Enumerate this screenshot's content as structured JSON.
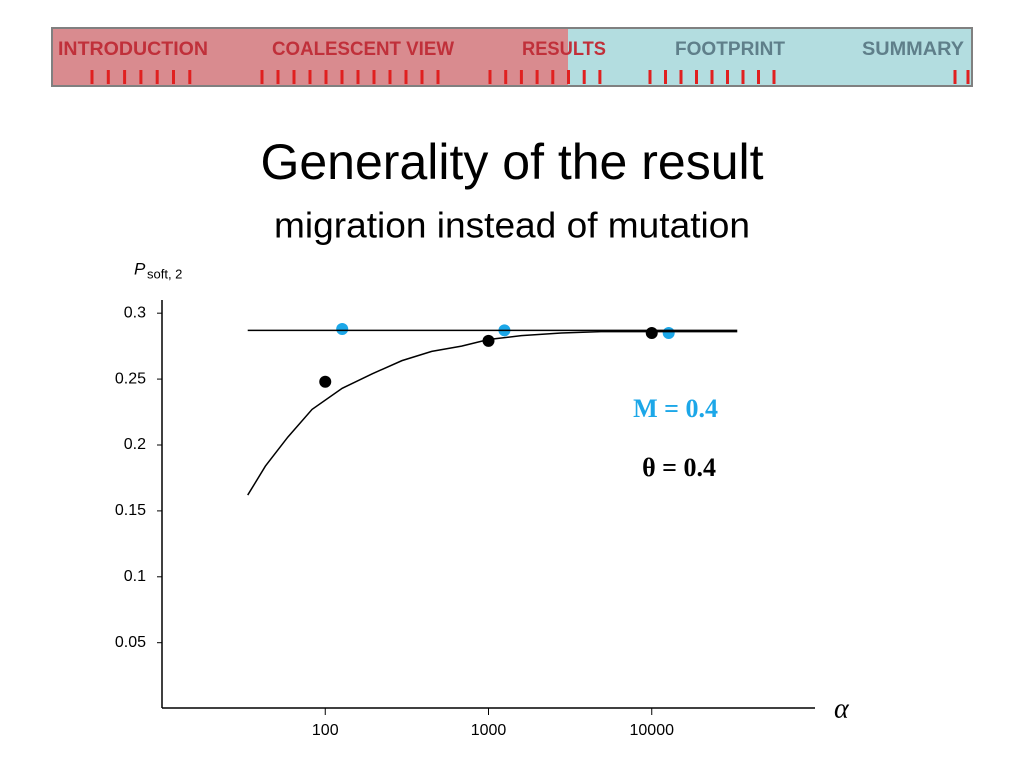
{
  "nav": {
    "items": [
      "INTRODUCTION",
      "COALESCENT VIEW",
      "RESULTS",
      "FOOTPRINT",
      "SUMMARY"
    ]
  },
  "chart_data": {
    "type": "scatter",
    "title": "Generality of the result",
    "subtitle": "migration instead of mutation",
    "ylabel": "P",
    "ylabel_subscript": "soft, 2",
    "xlabel": "α",
    "xscale": "log",
    "xlim": [
      10,
      100000
    ],
    "xticks": [
      100,
      1000,
      10000
    ],
    "ylim": [
      0,
      0.31
    ],
    "yticks": [
      0.05,
      0.1,
      0.15,
      0.2,
      0.25,
      0.3
    ],
    "series": [
      {
        "name": "θ = 0.4",
        "kind": "points",
        "color": "#000000",
        "x": [
          100,
          1000,
          10000
        ],
        "values": [
          0.248,
          0.279,
          0.285
        ]
      },
      {
        "name": "M = 0.4",
        "kind": "points",
        "color": "#1ca7e8",
        "x": [
          127,
          1252,
          12700
        ],
        "values": [
          0.288,
          0.287,
          0.285
        ]
      },
      {
        "kind": "line",
        "color": "#000000",
        "x": [
          33.5,
          33400
        ],
        "values": [
          0.287,
          0.287
        ]
      },
      {
        "kind": "line",
        "color": "#000000",
        "x": [
          33.5,
          43,
          59,
          83,
          127,
          194,
          295,
          449,
          684,
          1000,
          1590,
          2790,
          4890,
          10000,
          19900,
          33400
        ],
        "values": [
          0.162,
          0.184,
          0.206,
          0.227,
          0.243,
          0.254,
          0.264,
          0.271,
          0.275,
          0.28,
          0.283,
          0.285,
          0.286,
          0.286,
          0.286,
          0.286
        ]
      }
    ]
  }
}
